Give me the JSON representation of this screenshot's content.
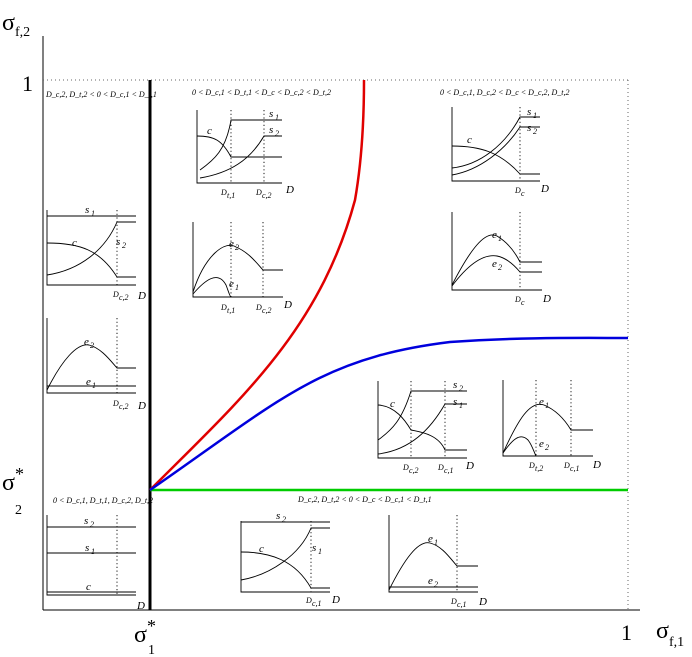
{
  "axes": {
    "y_name": "σ",
    "y_sub": "f,2",
    "x_name": "σ",
    "x_sub": "f,1",
    "y_one": "1",
    "x_one": "1",
    "sigma2_star": "σ",
    "sigma2_sup": "*",
    "sigma2_sub": "2",
    "sigma1_star": "σ",
    "sigma1_sup": "*",
    "sigma1_sub": "1",
    "bottom_left_D": "D"
  },
  "conditions": {
    "top_left": "D_c,2, D_t,2 < 0 < D_c,1 < D_t,1",
    "top_middle": "0 < D_c,1 < D_t,1 < D_c < D_c,2 < D_t,2",
    "top_right": "0 < D_c,1, D_c,2 < D_c < D_c,2, D_t,2",
    "bottom_left": "0 < D_c,1, D_t,1, D_c,2, D_t,2",
    "bottom_right": "D_c,2, D_t,2 < 0 < D_c < D_c,1 < D_t,1"
  },
  "curves": {
    "red": "#e00000",
    "blue": "#0000dd",
    "green": "#00cc00"
  },
  "labels": {
    "s1": "s",
    "s2": "s",
    "c": "c",
    "e1": "e",
    "e2": "e",
    "sub1": "1",
    "sub2": "2",
    "D": "D",
    "Dt1": "D",
    "Dc2": "D",
    "Dc1": "D",
    "Dt2": "D",
    "Dc": "D",
    "t1": "t,1",
    "c2": "c,2",
    "c1": "c,1",
    "t2": "t,2",
    "csub": "c"
  }
}
